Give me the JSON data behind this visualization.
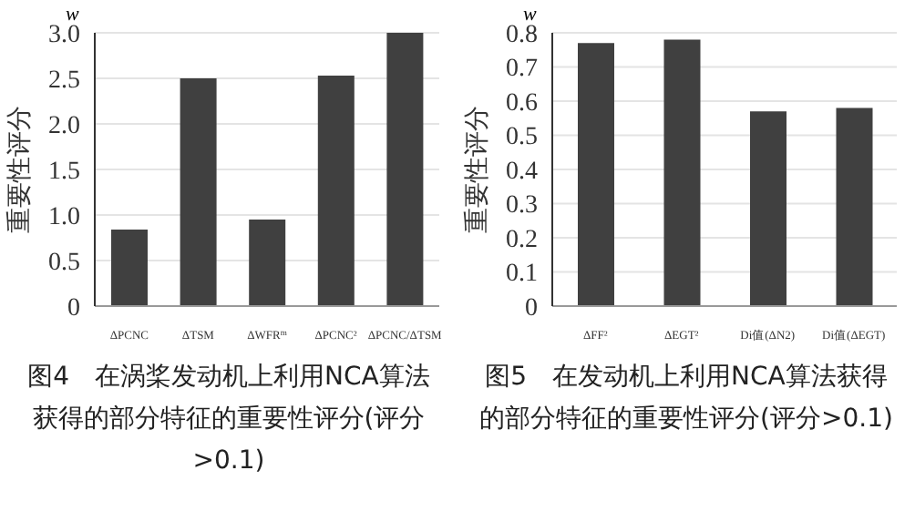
{
  "chart_data": [
    {
      "type": "bar",
      "title": "图4　在涡桨发动机上利用NCA算法获得的部分特征的重要性评分(评分>0.1)",
      "ylabel": "重要性评分",
      "annotations": [
        "w"
      ],
      "categories": [
        "ΔPCNC",
        "ΔTSM",
        "ΔWFR$^{m}$",
        "ΔPCNC²",
        "ΔPCNC/ΔTSM"
      ],
      "values": [
        0.84,
        2.5,
        0.95,
        2.53,
        3.0
      ],
      "color": "#404040",
      "ylim": [
        0,
        3
      ],
      "yticks": [
        0,
        {
          "value": 0.5,
          "label": "0.5"
        },
        {
          "value": 1,
          "label": "1.0"
        },
        {
          "value": 1.5,
          "label": "1.5"
        },
        {
          "value": 2,
          "label": "2.0"
        },
        {
          "value": 2.5,
          "label": "2.5"
        },
        {
          "value": 3,
          "label": "3.0"
        }
      ],
      "grid": "y",
      "legend": false
    },
    {
      "type": "bar",
      "title": "图5　在发动机上利用NCA算法获得的部分特征的重要性评分(评分>0.1)",
      "ylabel": "重要性评分",
      "annotations": [
        "w"
      ],
      "categories": [
        "ΔFF²",
        "ΔEGT²",
        "Di值(ΔN2)",
        "Di值(ΔEGT)"
      ],
      "values": [
        0.77,
        0.78,
        0.57,
        0.58
      ],
      "color": "#404040",
      "ylim": [
        0,
        0.8
      ],
      "yticks": [
        0,
        0.1,
        0.2,
        0.3,
        0.4,
        0.5,
        0.6,
        0.7,
        0.8
      ],
      "grid": "y",
      "legend": false
    }
  ]
}
